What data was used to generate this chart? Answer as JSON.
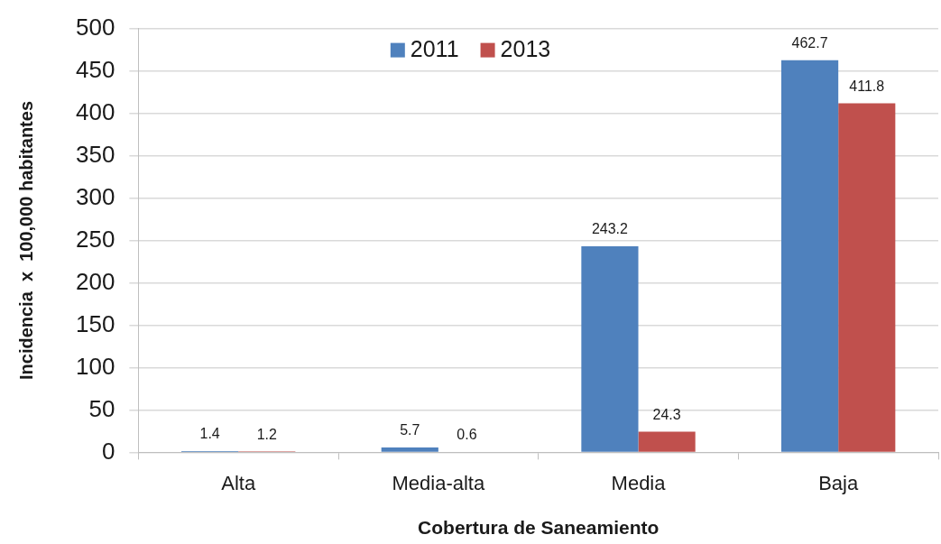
{
  "chart_data": {
    "type": "bar",
    "xlabel": "Cobertura de Saneamiento",
    "ylabel": "Incidencia  x  100,000 habitantes",
    "categories": [
      "Alta",
      "Media-alta",
      "Media",
      "Baja"
    ],
    "series": [
      {
        "name": "2011",
        "color": "#4f81bd",
        "values": [
          1.4,
          5.7,
          243.2,
          462.7
        ]
      },
      {
        "name": "2013",
        "color": "#c0504d",
        "values": [
          1.2,
          0.6,
          24.3,
          411.8
        ]
      }
    ],
    "ylim": [
      0,
      500
    ],
    "yticks": [
      0,
      50,
      100,
      150,
      200,
      250,
      300,
      350,
      400,
      450,
      500
    ],
    "grid": "y",
    "legend": "top",
    "data_labels": true
  }
}
